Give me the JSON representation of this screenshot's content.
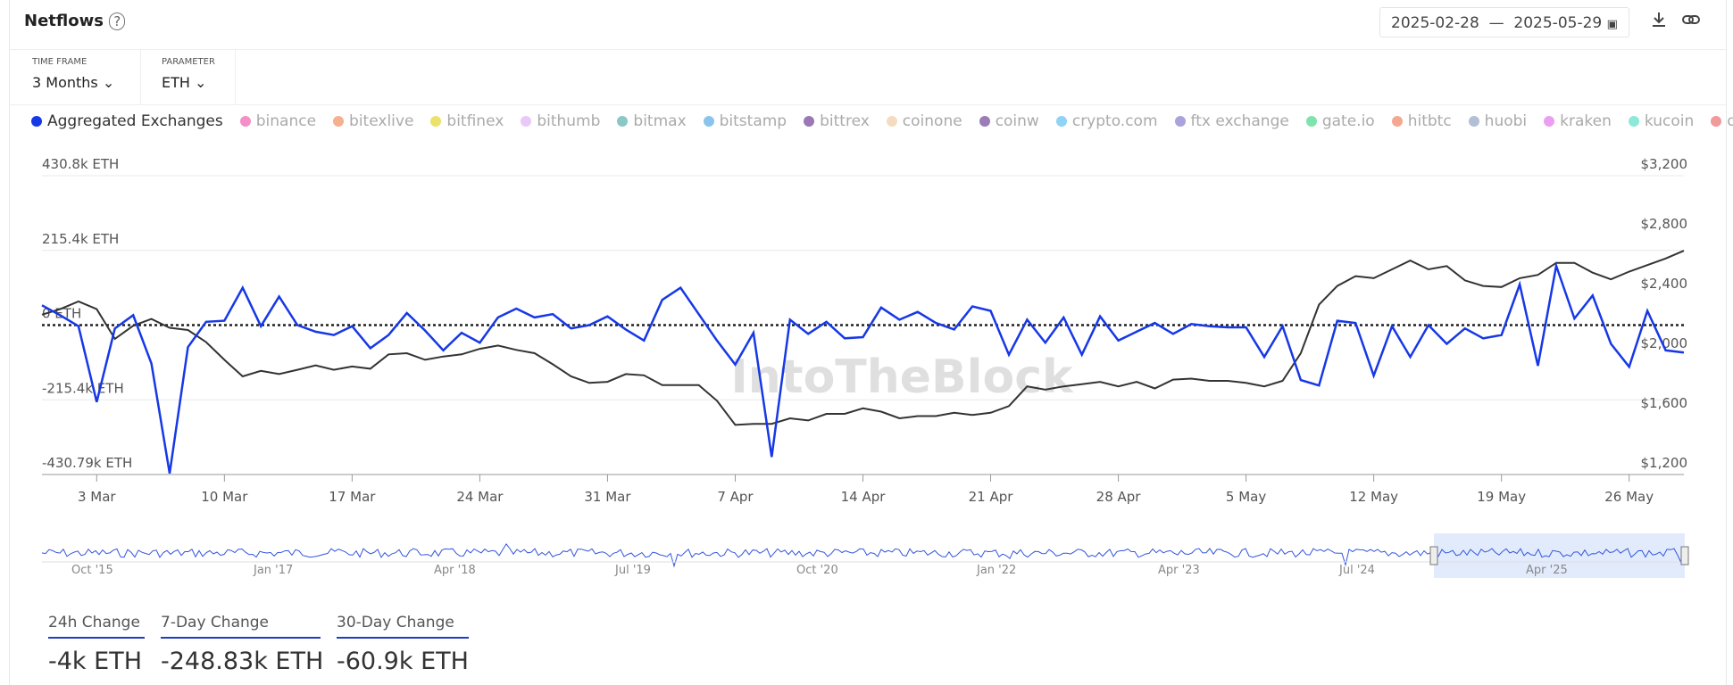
{
  "header": {
    "title": "Netflows",
    "date_start": "2025-02-28",
    "date_separator": "—",
    "date_end": "2025-05-29"
  },
  "controls": [
    {
      "label": "TIME FRAME",
      "value": "3 Months"
    },
    {
      "label": "PARAMETER",
      "value": "ETH"
    }
  ],
  "chart_data": {
    "type": "line",
    "categories": [
      null,
      null,
      null,
      "3 Mar",
      null,
      null,
      null,
      null,
      null,
      null,
      "10 Mar",
      null,
      null,
      null,
      null,
      null,
      null,
      "17 Mar",
      null,
      null,
      null,
      null,
      null,
      null,
      "24 Mar",
      null,
      null,
      null,
      null,
      null,
      null,
      "31 Mar",
      null,
      null,
      null,
      null,
      null,
      null,
      "7 Apr",
      null,
      null,
      null,
      null,
      null,
      null,
      "14 Apr",
      null,
      null,
      null,
      null,
      null,
      null,
      "21 Apr",
      null,
      null,
      null,
      null,
      null,
      null,
      "28 Apr",
      null,
      null,
      null,
      null,
      null,
      null,
      "5 May",
      null,
      null,
      null,
      null,
      null,
      null,
      "12 May",
      null,
      null,
      null,
      null,
      null,
      null,
      "19 May",
      null,
      null,
      null,
      null,
      null,
      null,
      "26 May",
      null,
      null,
      null
    ],
    "series": [
      {
        "name": "Aggregated Exchanges",
        "color": "#1638e6",
        "values": [
          57000,
          28500,
          -3200,
          -221800,
          -9500,
          28500,
          -110900,
          -427700,
          -63400,
          9500,
          12700,
          107700,
          -3200,
          82400,
          0,
          -19000,
          -28500,
          -3200,
          -66500,
          -28500,
          34800,
          -15800,
          -72900,
          -22200,
          -50700,
          22200,
          47500,
          22200,
          31700,
          -9500,
          0,
          25300,
          -12700,
          -44400,
          72900,
          107700,
          31700,
          -44400,
          -114000,
          -22200,
          -380200,
          15800,
          -25300,
          9500,
          -38000,
          -34800,
          50700,
          15800,
          38000,
          6300,
          -12700,
          53900,
          41200,
          -85500,
          15800,
          -50700,
          22200,
          -85500,
          25300,
          -44400,
          -19000,
          6300,
          -25300,
          3200,
          -3200,
          -6300,
          -6300,
          -91900,
          -3200,
          -158400,
          -174200,
          12700,
          6300,
          -145700,
          -3200,
          -91900,
          0,
          -53900,
          -9500,
          -38000,
          -28500,
          117200,
          -117200,
          171100,
          19000,
          85500,
          -53900,
          -120400,
          41200,
          -72900,
          -79200
        ]
      },
      {
        "axis": "y2",
        "color": "#333333",
        "values": [
          2270,
          2307,
          2359,
          2307,
          2108,
          2196,
          2241,
          2182,
          2167,
          2086,
          1968,
          1857,
          1894,
          1872,
          1901,
          1931,
          1901,
          1923,
          1908,
          2004,
          2012,
          1968,
          1990,
          2004,
          2041,
          2063,
          2034,
          2012,
          1938,
          1857,
          1813,
          1820,
          1872,
          1864,
          1798,
          1798,
          1798,
          1694,
          1532,
          1539,
          1539,
          1576,
          1562,
          1606,
          1606,
          1643,
          1621,
          1576,
          1591,
          1591,
          1613,
          1599,
          1613,
          1658,
          1790,
          1768,
          1790,
          1805,
          1820,
          1790,
          1820,
          1776,
          1835,
          1842,
          1827,
          1827,
          1813,
          1790,
          1827,
          2012,
          2337,
          2462,
          2528,
          2514,
          2573,
          2632,
          2573,
          2595,
          2499,
          2462,
          2455,
          2514,
          2536,
          2617,
          2617,
          2551,
          2506,
          2558,
          2602,
          2646,
          2698
        ]
      }
    ],
    "inactive_series": [
      {
        "name": "binance",
        "color": "#f48fc7"
      },
      {
        "name": "bitexlive",
        "color": "#f5b08f"
      },
      {
        "name": "bitfinex",
        "color": "#ebe26a"
      },
      {
        "name": "bithumb",
        "color": "#e8c9f7"
      },
      {
        "name": "bitmax",
        "color": "#8cc7c7"
      },
      {
        "name": "bitstamp",
        "color": "#8ac4ec"
      },
      {
        "name": "bittrex",
        "color": "#9b78b5"
      },
      {
        "name": "coinone",
        "color": "#f5dcc0"
      },
      {
        "name": "coinw",
        "color": "#9a7cb6"
      },
      {
        "name": "crypto.com",
        "color": "#8fd3f7"
      },
      {
        "name": "ftx exchange",
        "color": "#a8a3dc"
      },
      {
        "name": "gate.io",
        "color": "#7fe3ad"
      },
      {
        "name": "hitbtc",
        "color": "#f5a891"
      },
      {
        "name": "huobi",
        "color": "#b3bfd6"
      },
      {
        "name": "kraken",
        "color": "#ec9ef0"
      },
      {
        "name": "kucoin",
        "color": "#8ce8d8"
      },
      {
        "name": "okex",
        "color": "#f29999"
      }
    ],
    "ylim": [
      -430790,
      430800
    ],
    "yticks": [
      {
        "value": 430800,
        "label": "430.8k ETH"
      },
      {
        "value": 215400,
        "label": "215.4k ETH"
      },
      {
        "value": 0,
        "label": "0 ETH"
      },
      {
        "value": -215400,
        "label": "-215.4k ETH"
      },
      {
        "value": -430790,
        "label": "-430.79k ETH"
      }
    ],
    "y2lim": [
      1200,
      3200
    ],
    "y2ticks": [
      {
        "value": 3200,
        "label": "$3,200"
      },
      {
        "value": 2800,
        "label": "$2,800"
      },
      {
        "value": 2400,
        "label": "$2,400"
      },
      {
        "value": 2000,
        "label": "$2,000"
      },
      {
        "value": 1600,
        "label": "$1,600"
      },
      {
        "value": 1200,
        "label": "$1,200"
      }
    ],
    "grid": true,
    "watermark": "IntoTheBlock"
  },
  "navigator": {
    "labels": [
      "Oct '15",
      "Jan '17",
      "Apr '18",
      "Jul '19",
      "Oct '20",
      "Jan '22",
      "Apr '23",
      "Jul '24",
      "Apr '25"
    ]
  },
  "stats": [
    {
      "label": "24h Change",
      "value": "-4k ETH"
    },
    {
      "label": "7-Day Change",
      "value": "-248.83k ETH"
    },
    {
      "label": "30-Day Change",
      "value": "-60.9k ETH"
    }
  ]
}
